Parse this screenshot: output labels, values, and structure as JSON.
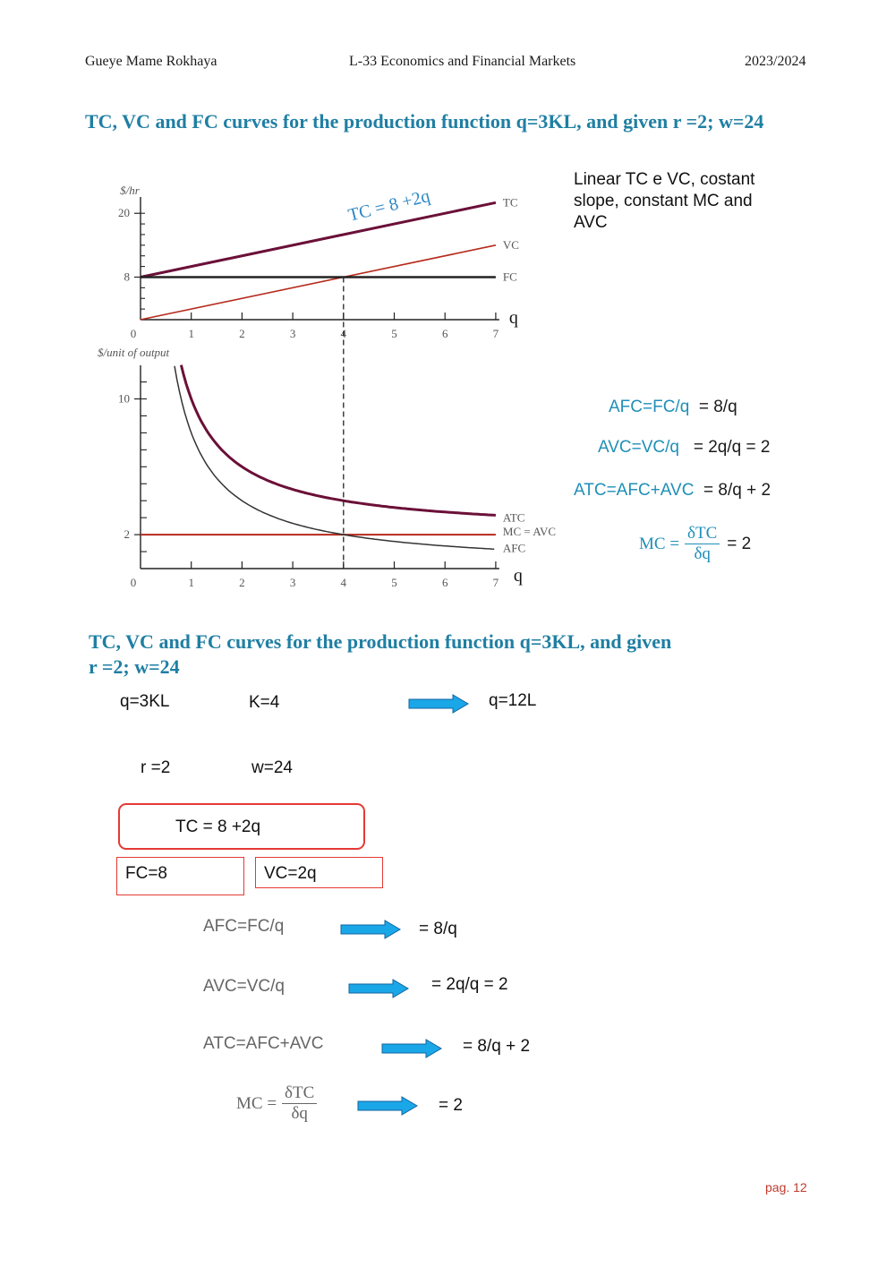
{
  "header": {
    "author": "Gueye Mame Rokhaya",
    "course": "L-33 Economics and Financial Markets",
    "year": "2023/2024"
  },
  "section1": {
    "title": "TC, VC and FC curves for the production function q=3KL, and given r =2; w=24",
    "note": "Linear TC e VC, costant slope, constant MC and AVC",
    "formulas": [
      {
        "lhs": "AFC=FC/q",
        "rhs": "= 8/q"
      },
      {
        "lhs": "AVC=VC/q",
        "rhs": "= 2q/q = 2"
      },
      {
        "lhs": "ATC=AFC+AVC",
        "rhs": "= 8/q  + 2"
      }
    ],
    "mc": {
      "lhs": "MC =",
      "num": "δTC",
      "den": "δq",
      "rhs": "= 2"
    }
  },
  "chart_data": [
    {
      "type": "line",
      "ylabel": "$/hr",
      "xlabel": "q",
      "xlim": [
        0,
        7
      ],
      "ylim": [
        0,
        22
      ],
      "x_ticks": [
        "0",
        "1",
        "2",
        "3",
        "4",
        "5",
        "6",
        "7"
      ],
      "y_ticks": [
        "8",
        "20"
      ],
      "annotation": "TC = 8 +2q",
      "series": [
        {
          "name": "TC",
          "color": "#6b1038",
          "x": [
            0,
            7
          ],
          "y": [
            8,
            22
          ]
        },
        {
          "name": "VC",
          "color": "#b52a1c",
          "x": [
            0,
            7
          ],
          "y": [
            0,
            14
          ]
        },
        {
          "name": "FC",
          "color": "#222222",
          "x": [
            0,
            7
          ],
          "y": [
            8,
            8
          ]
        }
      ],
      "reference_line": {
        "x": 4,
        "style": "dashed"
      }
    },
    {
      "type": "line",
      "ylabel": "$/unit of output",
      "xlabel": "q",
      "xlim": [
        0,
        7
      ],
      "ylim": [
        0,
        12
      ],
      "x_ticks": [
        "0",
        "1",
        "2",
        "3",
        "4",
        "5",
        "6",
        "7"
      ],
      "y_ticks": [
        "2",
        "10"
      ],
      "series": [
        {
          "name": "ATC",
          "color": "#6b1038",
          "formula": "8/q + 2"
        },
        {
          "name": "MC = AVC",
          "color": "#b52a1c",
          "formula": "2"
        },
        {
          "name": "AFC",
          "color": "#333333",
          "formula": "8/q"
        }
      ],
      "reference_line": {
        "x": 4,
        "style": "dashed"
      }
    }
  ],
  "section2": {
    "title_line1": "TC, VC and FC curves for the production function q=3KL, and given",
    "title_line2": "r =2; w=24",
    "q_eq": "q=3KL",
    "k_eq": "K=4",
    "q_result": "q=12L",
    "r_eq": "r =2",
    "w_eq": "w=24",
    "tc_box": "TC = 8 +2q",
    "fc_box": "FC=8",
    "vc_box": "VC=2q",
    "steps": [
      {
        "lhs": "AFC=FC/q",
        "rhs": "= 8/q"
      },
      {
        "lhs": "AVC=VC/q",
        "rhs": "= 2q/q = 2"
      },
      {
        "lhs": "ATC=AFC+AVC",
        "rhs": "= 8/q  + 2"
      }
    ],
    "mc": {
      "lhs": "MC =",
      "num": "δTC",
      "den": "δq",
      "rhs": "=  2"
    },
    "arrow_color": "#1aa7e8"
  },
  "footer": {
    "page": "pag. 12"
  }
}
